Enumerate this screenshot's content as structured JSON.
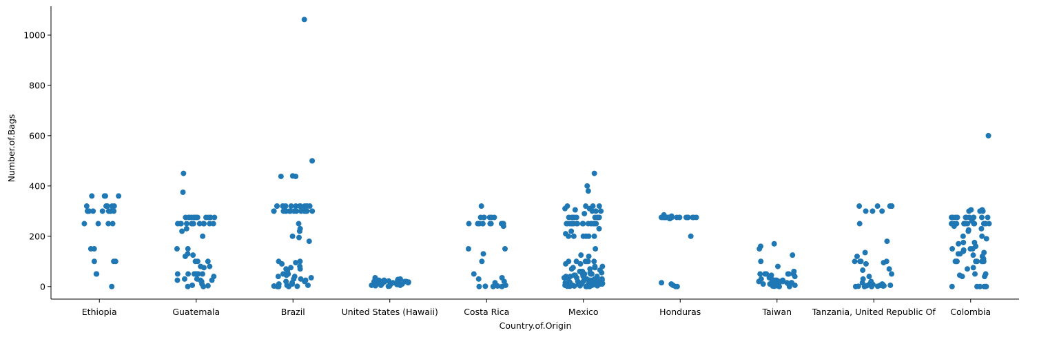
{
  "chart_data": {
    "type": "scatter",
    "title": "",
    "xlabel": "Country.of.Origin",
    "ylabel": "Number.of.Bags",
    "ylim": [
      -50,
      1115
    ],
    "yticks": [
      0,
      200,
      400,
      600,
      800,
      1000
    ],
    "grid": false,
    "color": "#1f77b4",
    "categories": [
      "Ethiopia",
      "Guatemala",
      "Brazil",
      "United States (Hawaii)",
      "Costa Rica",
      "Mexico",
      "Honduras",
      "Taiwan",
      "Tanzania, United Republic Of",
      "Colombia"
    ],
    "values": [
      [
        360,
        360,
        360,
        360,
        320,
        320,
        320,
        320,
        320,
        320,
        300,
        300,
        300,
        300,
        300,
        300,
        300,
        300,
        300,
        250,
        250,
        250,
        250,
        150,
        150,
        100,
        100,
        100,
        50,
        50,
        0
      ],
      [
        450,
        375,
        275,
        275,
        275,
        275,
        275,
        275,
        275,
        275,
        275,
        275,
        275,
        275,
        250,
        250,
        250,
        250,
        250,
        250,
        250,
        250,
        250,
        250,
        250,
        250,
        250,
        250,
        250,
        230,
        220,
        200,
        150,
        150,
        130,
        125,
        120,
        100,
        100,
        100,
        80,
        80,
        75,
        50,
        50,
        50,
        50,
        50,
        50,
        50,
        40,
        30,
        30,
        25,
        25,
        25,
        20,
        10,
        5,
        3,
        0,
        0
      ],
      [
        1062,
        500,
        440,
        438,
        438,
        320,
        320,
        320,
        320,
        320,
        320,
        320,
        320,
        320,
        320,
        320,
        320,
        320,
        310,
        300,
        300,
        300,
        300,
        300,
        300,
        300,
        300,
        300,
        300,
        300,
        300,
        300,
        300,
        250,
        230,
        220,
        200,
        195,
        180,
        100,
        100,
        95,
        90,
        80,
        75,
        70,
        70,
        60,
        50,
        50,
        45,
        40,
        40,
        35,
        30,
        30,
        25,
        20,
        20,
        15,
        10,
        10,
        5,
        5,
        2,
        1,
        0,
        0,
        0
      ],
      [
        35,
        30,
        30,
        28,
        25,
        25,
        25,
        22,
        20,
        20,
        20,
        20,
        18,
        18,
        15,
        15,
        15,
        15,
        15,
        12,
        12,
        10,
        10,
        10,
        10,
        10,
        8,
        8,
        5,
        5,
        5,
        5,
        3,
        2,
        1
      ],
      [
        320,
        275,
        275,
        275,
        275,
        275,
        275,
        250,
        250,
        250,
        250,
        250,
        250,
        250,
        250,
        250,
        250,
        250,
        240,
        150,
        150,
        130,
        100,
        50,
        35,
        30,
        20,
        15,
        5,
        2,
        1,
        0,
        0,
        0
      ],
      [
        450,
        400,
        380,
        320,
        320,
        320,
        320,
        310,
        310,
        305,
        300,
        300,
        300,
        290,
        275,
        275,
        275,
        275,
        275,
        275,
        275,
        275,
        275,
        250,
        250,
        250,
        250,
        250,
        250,
        250,
        250,
        250,
        250,
        250,
        250,
        250,
        250,
        250,
        250,
        250,
        230,
        220,
        210,
        200,
        200,
        200,
        200,
        200,
        200,
        150,
        125,
        120,
        100,
        100,
        100,
        100,
        100,
        100,
        90,
        90,
        80,
        80,
        75,
        75,
        70,
        70,
        65,
        60,
        60,
        55,
        55,
        50,
        50,
        50,
        50,
        50,
        50,
        45,
        45,
        40,
        40,
        40,
        40,
        35,
        35,
        35,
        30,
        30,
        30,
        30,
        30,
        25,
        25,
        25,
        25,
        25,
        20,
        20,
        20,
        20,
        20,
        20,
        15,
        15,
        15,
        15,
        15,
        12,
        12,
        10,
        10,
        10,
        10,
        10,
        10,
        10,
        8,
        8,
        5,
        5,
        5,
        5,
        5,
        3,
        3,
        2,
        2,
        1,
        1,
        0,
        0,
        0
      ],
      [
        285,
        280,
        275,
        275,
        275,
        275,
        275,
        275,
        275,
        275,
        275,
        275,
        275,
        275,
        275,
        275,
        275,
        275,
        275,
        275,
        275,
        275,
        275,
        270,
        200,
        15,
        10,
        5,
        0,
        0
      ],
      [
        170,
        160,
        150,
        125,
        100,
        80,
        60,
        50,
        50,
        50,
        50,
        50,
        50,
        45,
        40,
        35,
        30,
        30,
        25,
        25,
        25,
        20,
        20,
        20,
        20,
        20,
        15,
        15,
        15,
        15,
        10,
        10,
        10,
        10,
        10,
        8,
        5,
        5,
        5,
        5,
        3,
        2,
        1,
        0,
        0
      ],
      [
        320,
        320,
        320,
        320,
        320,
        300,
        300,
        300,
        250,
        180,
        135,
        120,
        100,
        100,
        100,
        100,
        95,
        90,
        70,
        65,
        50,
        40,
        30,
        20,
        15,
        10,
        10,
        8,
        5,
        5,
        5,
        5,
        3,
        3,
        2,
        1,
        1,
        0,
        0,
        0
      ],
      [
        600,
        305,
        305,
        300,
        300,
        300,
        275,
        275,
        275,
        275,
        275,
        275,
        275,
        275,
        275,
        275,
        275,
        275,
        260,
        250,
        250,
        250,
        250,
        250,
        250,
        250,
        250,
        250,
        250,
        250,
        250,
        250,
        250,
        250,
        240,
        230,
        225,
        220,
        200,
        200,
        190,
        175,
        175,
        170,
        160,
        150,
        150,
        150,
        145,
        140,
        135,
        130,
        130,
        125,
        120,
        110,
        100,
        100,
        100,
        100,
        100,
        100,
        100,
        100,
        75,
        70,
        50,
        50,
        45,
        40,
        40,
        0,
        0,
        0,
        0,
        0,
        0
      ]
    ]
  }
}
